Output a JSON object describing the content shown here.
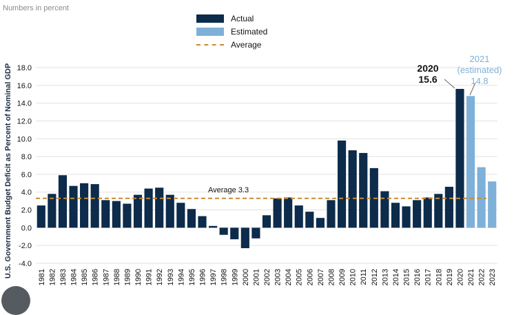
{
  "note": "Numbers in percent",
  "legend": {
    "actual": "Actual",
    "estimated": "Estimated",
    "average": "Average"
  },
  "colors": {
    "actual": "#0d2b4a",
    "estimated": "#7fb0d8",
    "average": "#c98a2e"
  },
  "chart_data": {
    "type": "bar",
    "ylabel": "U.S. Government Budget Deficit as Percent of Nominal GDP",
    "ylim": [
      -4.0,
      18.0
    ],
    "yticks": [
      "18.0",
      "16.0",
      "14.0",
      "12.0",
      "10.0",
      "8.0",
      "6.0",
      "4.0",
      "2.0",
      "0.0",
      "-2.0",
      "-4.0"
    ],
    "grid": true,
    "categories": [
      "1981",
      "1982",
      "1983",
      "1984",
      "1985",
      "1986",
      "1987",
      "1988",
      "1989",
      "1990",
      "1991",
      "1992",
      "1993",
      "1994",
      "1995",
      "1996",
      "1997",
      "1998",
      "1999",
      "2000",
      "2001",
      "2002",
      "2003",
      "2004",
      "2005",
      "2006",
      "2007",
      "2008",
      "2009",
      "2010",
      "2011",
      "2012",
      "2013",
      "2014",
      "2015",
      "2016",
      "2017",
      "2018",
      "2019",
      "2020",
      "2021",
      "2022",
      "2023"
    ],
    "series": [
      {
        "name": "Actual",
        "values": [
          2.5,
          3.8,
          5.9,
          4.7,
          5.0,
          4.9,
          3.1,
          3.0,
          2.7,
          3.7,
          4.4,
          4.5,
          3.7,
          2.8,
          2.1,
          1.3,
          0.2,
          -0.8,
          -1.3,
          -2.3,
          -1.2,
          1.4,
          3.3,
          3.4,
          2.5,
          1.8,
          1.1,
          3.1,
          9.8,
          8.7,
          8.4,
          6.7,
          4.1,
          2.8,
          2.4,
          3.1,
          3.4,
          3.8,
          4.6,
          15.6,
          null,
          null,
          null
        ]
      },
      {
        "name": "Estimated",
        "values": [
          null,
          null,
          null,
          null,
          null,
          null,
          null,
          null,
          null,
          null,
          null,
          null,
          null,
          null,
          null,
          null,
          null,
          null,
          null,
          null,
          null,
          null,
          null,
          null,
          null,
          null,
          null,
          null,
          null,
          null,
          null,
          null,
          null,
          null,
          null,
          null,
          null,
          null,
          null,
          null,
          14.8,
          6.8,
          5.2
        ]
      }
    ],
    "average": 3.3,
    "annotations": {
      "average": "Average 3.3",
      "y2020_year": "2020",
      "y2020_value": "15.6",
      "y2021_year": "2021",
      "y2021_sub": "(estimated)",
      "y2021_value": "14.8"
    }
  }
}
